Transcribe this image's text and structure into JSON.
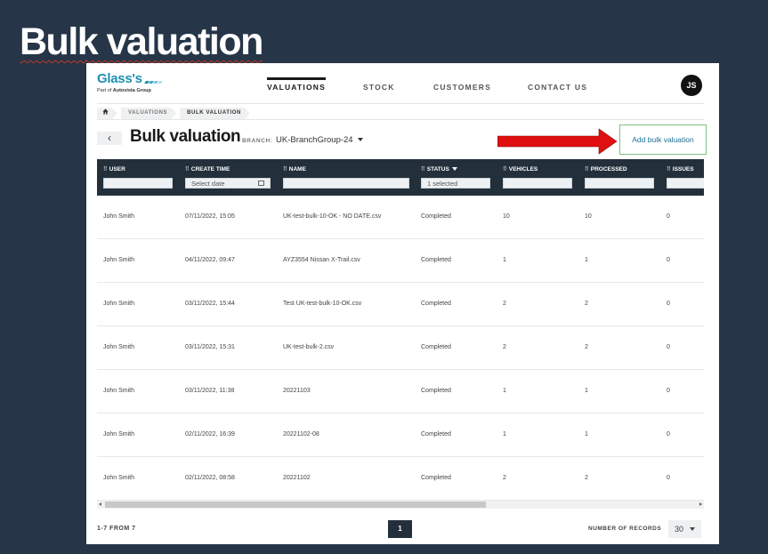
{
  "slide": {
    "title": "Bulk valuation"
  },
  "logo": {
    "name": "Glass's",
    "tagline_prefix": "Part of",
    "tagline_brand": "Autovista Group"
  },
  "nav": {
    "items": [
      {
        "label": "VALUATIONS",
        "active": true
      },
      {
        "label": "STOCK",
        "active": false
      },
      {
        "label": "CUSTOMERS",
        "active": false
      },
      {
        "label": "CONTACT US",
        "active": false
      }
    ],
    "avatar_initials": "JS"
  },
  "breadcrumb": {
    "items": [
      "VALUATIONS",
      "BULK VALUATION"
    ]
  },
  "page": {
    "back_symbol": "‹",
    "title": "Bulk valuation",
    "branch_label": "BRANCH:",
    "branch_value": "UK-BranchGroup-24",
    "add_button": "Add bulk valuation"
  },
  "table": {
    "columns": [
      "USER",
      "CREATE TIME",
      "NAME",
      "STATUS",
      "VEHICLES",
      "PROCESSED",
      "ISSUES"
    ],
    "filters": {
      "create_time_placeholder": "Select date",
      "status_value": "1 selected"
    },
    "rows": [
      {
        "user": "John Smith",
        "create_time": "07/11/2022, 15:05",
        "name": "UK-test-bulk-10-OK - NO DATE.csv",
        "status": "Completed",
        "vehicles": "10",
        "processed": "10",
        "issues": "0"
      },
      {
        "user": "John Smith",
        "create_time": "04/11/2022, 09:47",
        "name": "AYZ3554 Nissan X-Trail.csv",
        "status": "Completed",
        "vehicles": "1",
        "processed": "1",
        "issues": "0"
      },
      {
        "user": "John Smith",
        "create_time": "03/11/2022, 15:44",
        "name": "Test UK-test-bulk-10-OK.csv",
        "status": "Completed",
        "vehicles": "2",
        "processed": "2",
        "issues": "0"
      },
      {
        "user": "John Smith",
        "create_time": "03/11/2022, 15:31",
        "name": "UK-test-bulk-2.csv",
        "status": "Completed",
        "vehicles": "2",
        "processed": "2",
        "issues": "0"
      },
      {
        "user": "John Smith",
        "create_time": "03/11/2022, 11:38",
        "name": "20221103",
        "status": "Completed",
        "vehicles": "1",
        "processed": "1",
        "issues": "0"
      },
      {
        "user": "John Smith",
        "create_time": "02/11/2022, 16:39",
        "name": "20221102-08",
        "status": "Completed",
        "vehicles": "1",
        "processed": "1",
        "issues": "0"
      },
      {
        "user": "John Smith",
        "create_time": "02/11/2022, 08:58",
        "name": "20221102",
        "status": "Completed",
        "vehicles": "2",
        "processed": "2",
        "issues": "0"
      }
    ]
  },
  "footer": {
    "range": "1-7 FROM 7",
    "current_page": "1",
    "records_label": "NUMBER OF RECORDS",
    "records_value": "30"
  },
  "colors": {
    "slide_background": "#263547",
    "table_header": "#23303c",
    "brand_blue": "#1f8fb0",
    "arrow_red": "#e01010",
    "button_border": "#7fbf7f"
  }
}
